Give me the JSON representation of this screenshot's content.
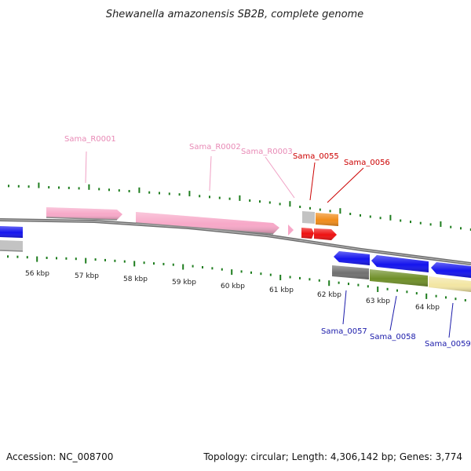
{
  "title": "Shewanella amazonensis SB2B, complete genome",
  "footer": {
    "accession": "Accession: NC_008700",
    "summary": "Topology: circular; Length: 4,306,142 bp; Genes: 3,774"
  },
  "colors": {
    "backbone": "#888888",
    "tick": "#1e7d1e",
    "rrna_pink": "#f7a8c8",
    "label_pink": "#e88ab6",
    "red_gene": "#ee1111",
    "label_red": "#cc0000",
    "orange_gene": "#f08c1a",
    "blue_gene": "#1414ee",
    "label_blue": "#1a1aaa",
    "gray_gene": "#c3c3c3",
    "dark_gray_gene": "#707070",
    "olive_gene": "#6f8f28",
    "cream_gene": "#f3e6a3"
  },
  "kbp_labels": [
    "56 kbp",
    "57 kbp",
    "58 kbp",
    "59 kbp",
    "60 kbp",
    "61 kbp",
    "62 kbp",
    "63 kbp",
    "64 kbp"
  ],
  "gene_labels": {
    "r0001": "Sama_R0001",
    "r0002": "Sama_R0002",
    "r0003": "Sama_R0003",
    "g0055": "Sama_0055",
    "g0056": "Sama_0056",
    "g0057": "Sama_0057",
    "g0058": "Sama_0058",
    "g0059": "Sama_0059"
  }
}
